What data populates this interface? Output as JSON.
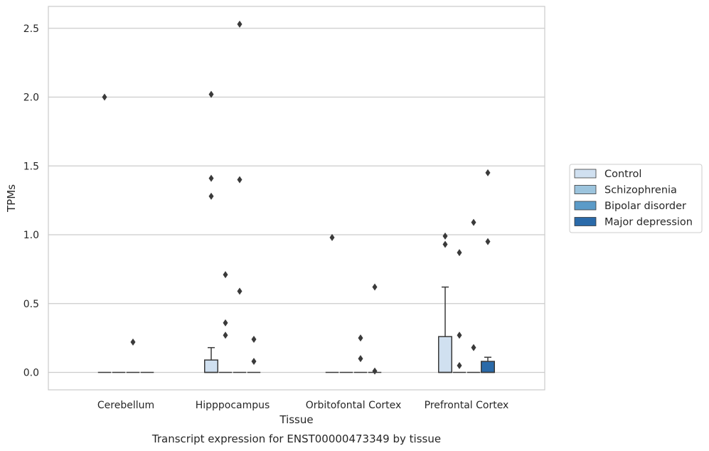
{
  "chart_data": {
    "type": "box",
    "title": "",
    "caption": "Transcript expression for ENST00000473349 by tissue",
    "xlabel": "Tissue",
    "ylabel": "TPMs",
    "ylim": [
      -0.12,
      2.66
    ],
    "yticks": [
      0.0,
      0.5,
      1.0,
      1.5,
      2.0,
      2.5
    ],
    "ytick_labels": [
      "0.0",
      "0.5",
      "1.0",
      "1.5",
      "2.0",
      "2.5"
    ],
    "grid": "horizontal",
    "legend_position": "right",
    "categories": [
      "Cerebellum",
      "Hipppocampus",
      "Orbitofontal Cortex",
      "Prefrontal Cortex"
    ],
    "series": [
      {
        "name": "Control",
        "color": "#d0e0f0",
        "boxes": [
          {
            "q1": 0,
            "median": 0,
            "q3": 0,
            "whisker_low": 0,
            "whisker_high": 0,
            "outliers": [
              2.0
            ]
          },
          {
            "q1": 0,
            "median": 0,
            "q3": 0.09,
            "whisker_low": 0,
            "whisker_high": 0.18,
            "outliers": [
              2.02,
              1.41,
              1.28
            ]
          },
          {
            "q1": 0,
            "median": 0,
            "q3": 0,
            "whisker_low": 0,
            "whisker_high": 0,
            "outliers": [
              0.98
            ]
          },
          {
            "q1": 0,
            "median": 0,
            "q3": 0.26,
            "whisker_low": 0,
            "whisker_high": 0.62,
            "outliers": [
              0.99,
              0.93
            ]
          }
        ]
      },
      {
        "name": "Schizophrenia",
        "color": "#9cc4dd",
        "boxes": [
          {
            "q1": 0,
            "median": 0,
            "q3": 0,
            "whisker_low": 0,
            "whisker_high": 0,
            "outliers": []
          },
          {
            "q1": 0,
            "median": 0,
            "q3": 0,
            "whisker_low": 0,
            "whisker_high": 0,
            "outliers": [
              0.71,
              0.36,
              0.27
            ]
          },
          {
            "q1": 0,
            "median": 0,
            "q3": 0,
            "whisker_low": 0,
            "whisker_high": 0,
            "outliers": []
          },
          {
            "q1": 0,
            "median": 0,
            "q3": 0,
            "whisker_low": 0,
            "whisker_high": 0,
            "outliers": [
              0.87,
              0.27,
              0.05
            ]
          }
        ]
      },
      {
        "name": "Bipolar disorder",
        "color": "#5b9bc8",
        "boxes": [
          {
            "q1": 0,
            "median": 0,
            "q3": 0,
            "whisker_low": 0,
            "whisker_high": 0,
            "outliers": [
              0.22
            ]
          },
          {
            "q1": 0,
            "median": 0,
            "q3": 0,
            "whisker_low": 0,
            "whisker_high": 0,
            "outliers": [
              2.53,
              1.4,
              0.59
            ]
          },
          {
            "q1": 0,
            "median": 0,
            "q3": 0,
            "whisker_low": 0,
            "whisker_high": 0,
            "outliers": [
              0.25,
              0.1
            ]
          },
          {
            "q1": 0,
            "median": 0,
            "q3": 0,
            "whisker_low": 0,
            "whisker_high": 0,
            "outliers": [
              1.09,
              0.18
            ]
          }
        ]
      },
      {
        "name": "Major depression",
        "color": "#2a6aa9",
        "boxes": [
          {
            "q1": 0,
            "median": 0,
            "q3": 0,
            "whisker_low": 0,
            "whisker_high": 0,
            "outliers": []
          },
          {
            "q1": 0,
            "median": 0,
            "q3": 0,
            "whisker_low": 0,
            "whisker_high": 0,
            "outliers": [
              0.24,
              0.08
            ]
          },
          {
            "q1": 0,
            "median": 0,
            "q3": 0,
            "whisker_low": 0,
            "whisker_high": 0,
            "outliers": [
              0.62,
              0.01
            ]
          },
          {
            "q1": 0,
            "median": 0,
            "q3": 0.08,
            "whisker_low": 0,
            "whisker_high": 0.11,
            "outliers": [
              1.45,
              0.95
            ]
          }
        ]
      }
    ]
  }
}
